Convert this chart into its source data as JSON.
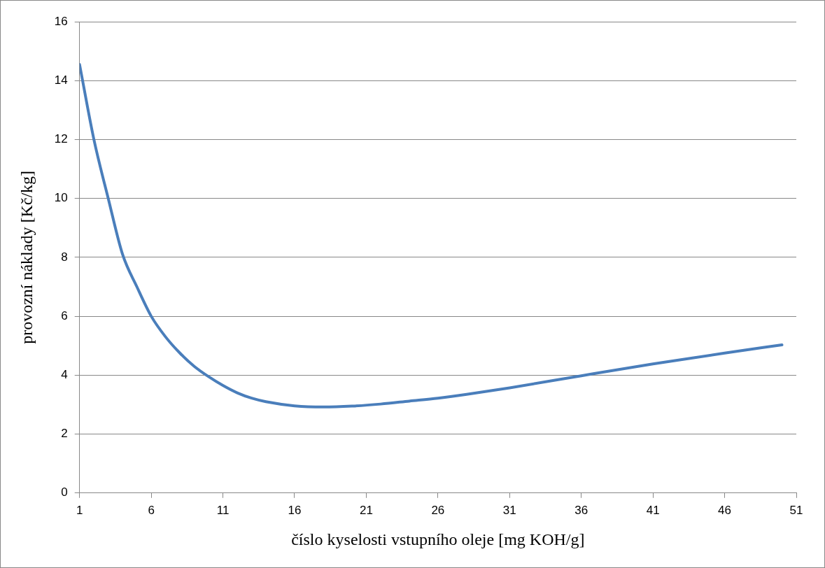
{
  "chart_data": {
    "type": "line",
    "xlabel": "číslo kyselosti vstupního oleje [mg KOH/g]",
    "ylabel": "provozní náklady [Kč/kg]",
    "series": [
      {
        "color": "#4a7ebb",
        "x": [
          1,
          2,
          3,
          4,
          5,
          6,
          7,
          8,
          9,
          10,
          11,
          12,
          13,
          14,
          16,
          18,
          20,
          22,
          24,
          26,
          28,
          31,
          36,
          41,
          46,
          50
        ],
        "values": [
          14.55,
          12,
          10,
          8.1,
          7,
          6,
          5.3,
          4.75,
          4.3,
          3.95,
          3.65,
          3.4,
          3.22,
          3.1,
          2.96,
          2.92,
          2.95,
          3.02,
          3.12,
          3.22,
          3.35,
          3.57,
          3.98,
          4.38,
          4.75,
          5.03
        ]
      }
    ],
    "xlim": [
      1,
      51
    ],
    "xticks": [
      1,
      6,
      11,
      16,
      21,
      26,
      31,
      36,
      41,
      46,
      51
    ],
    "ylim": [
      0,
      16
    ],
    "yticks": [
      0,
      2,
      4,
      6,
      8,
      10,
      12,
      14,
      16
    ],
    "grid": "y",
    "legend": false,
    "marker": "none",
    "line_style": "solid"
  }
}
